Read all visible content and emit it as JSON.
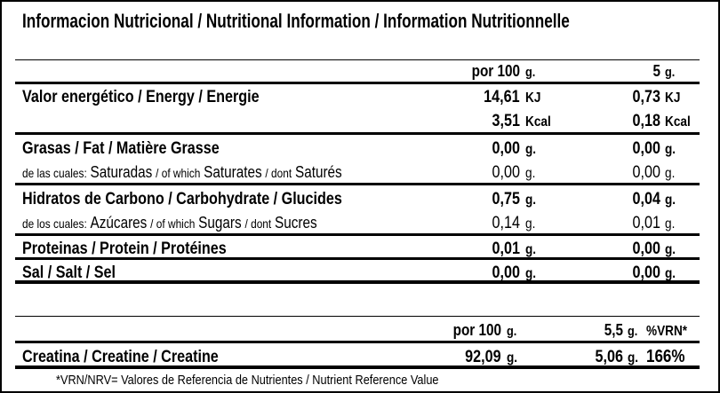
{
  "title": "Informacion Nutricional / Nutritional Information / Information Nutritionnelle",
  "colors": {
    "text": "#000000",
    "background": "#ffffff",
    "rule": "#000000"
  },
  "main_table": {
    "header": {
      "per100": {
        "num": "por 100",
        "unit": "g."
      },
      "serving": {
        "num": "5",
        "unit": "g."
      }
    },
    "rows": [
      {
        "label": "Valor energético / Energy / Energie",
        "per100": {
          "num": "14,61",
          "unit": "KJ"
        },
        "serving": {
          "num": "0,73",
          "unit": "KJ"
        }
      },
      {
        "label": "",
        "per100": {
          "num": "3,51",
          "unit": "Kcal"
        },
        "serving": {
          "num": "0,18",
          "unit": "Kcal"
        }
      },
      {
        "label": "Grasas / Fat / Matière Grasse",
        "per100": {
          "num": "0,00",
          "unit": "g."
        },
        "serving": {
          "num": "0,00",
          "unit": "g."
        }
      },
      {
        "parts": [
          "de las cuales:",
          "Saturadas",
          "/ of which",
          "Saturates",
          "/ dont",
          "Saturés"
        ],
        "per100": {
          "num": "0,00",
          "unit": "g."
        },
        "serving": {
          "num": "0,00",
          "unit": "g."
        }
      },
      {
        "label": "Hidratos de Carbono / Carbohydrate / Glucides",
        "per100": {
          "num": "0,75",
          "unit": "g."
        },
        "serving": {
          "num": "0,04",
          "unit": "g."
        }
      },
      {
        "parts": [
          "de los cuales:",
          "Azúcares",
          "/ of which",
          "Sugars",
          "/ dont",
          "Sucres"
        ],
        "per100": {
          "num": "0,14",
          "unit": "g."
        },
        "serving": {
          "num": "0,01",
          "unit": "g."
        }
      },
      {
        "label": "Proteinas / Protein / Protéines",
        "per100": {
          "num": "0,01",
          "unit": "g."
        },
        "serving": {
          "num": "0,00",
          "unit": "g."
        }
      },
      {
        "label": "Sal / Salt / Sel",
        "per100": {
          "num": "0,00",
          "unit": "g."
        },
        "serving": {
          "num": "0,00",
          "unit": "g."
        }
      }
    ]
  },
  "creatine_table": {
    "header": {
      "per100": {
        "num": "por 100",
        "unit": "g."
      },
      "serving": {
        "num": "5,5",
        "unit": "g."
      },
      "nrv": "%VRN*"
    },
    "rows": [
      {
        "label": "Creatina / Creatine / Creatine",
        "per100": {
          "num": "92,09",
          "unit": "g."
        },
        "serving": {
          "num": "5,06",
          "unit": "g."
        },
        "nrv": "166%"
      }
    ]
  },
  "footnote": "*VRN/NRV= Valores de Referencia de Nutrientes / Nutrient Reference Value"
}
